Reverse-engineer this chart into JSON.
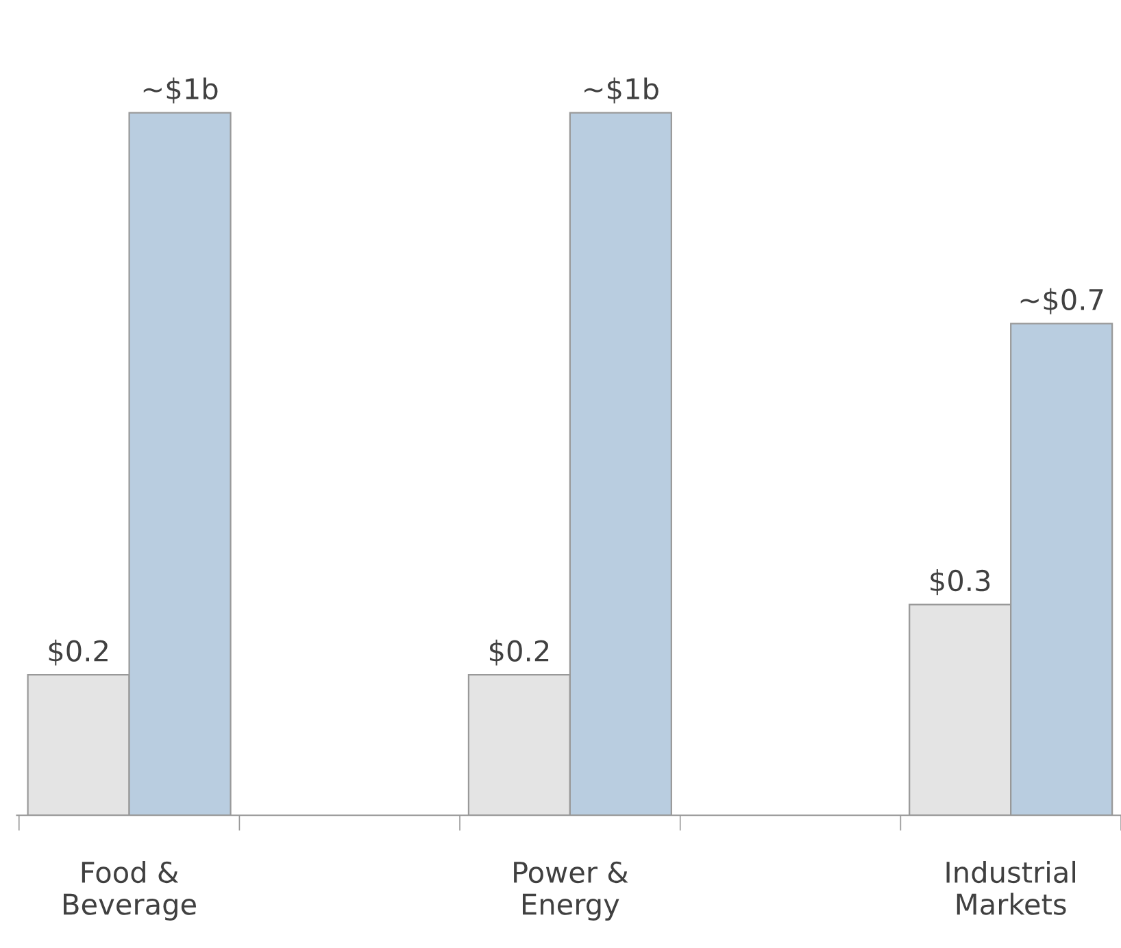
{
  "chart_data": {
    "type": "bar",
    "categories": [
      "Food &\nBeverage",
      "Power &\nEnergy",
      "Industrial\nMarkets"
    ],
    "series": [
      {
        "color": "#e4e4e4",
        "values": [
          0.2,
          0.2,
          0.3
        ],
        "value_labels": [
          "$0.2",
          "$0.2",
          "$0.3"
        ]
      },
      {
        "color": "#b9cde0",
        "values": [
          1,
          1,
          0.7
        ],
        "value_labels": [
          "~$1b",
          "~$1b",
          "~$0.7"
        ]
      }
    ],
    "grid": false,
    "legend": false
  }
}
